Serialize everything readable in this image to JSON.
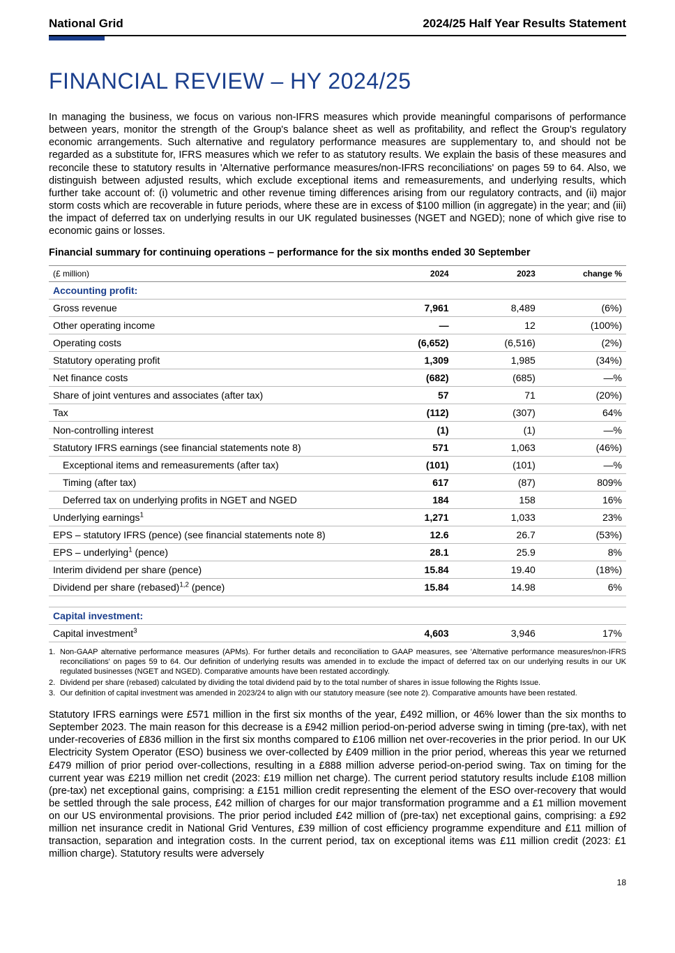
{
  "header": {
    "company": "National Grid",
    "doc_title": "2024/25 Half Year Results Statement"
  },
  "title": "FINANCIAL REVIEW – HY 2024/25",
  "intro_paragraph": "In managing the business, we focus on various non-IFRS measures which provide meaningful comparisons of performance between years, monitor the strength of the Group's balance sheet as well as profitability, and reflect the Group's regulatory economic arrangements. Such alternative and regulatory performance measures are supplementary to, and should not be regarded as a substitute for, IFRS measures which we refer to as statutory results. We explain the basis of these measures and reconcile these to statutory results in 'Alternative performance measures/non-IFRS reconciliations' on pages 59 to 64. Also, we distinguish between adjusted results, which exclude exceptional items and remeasurements, and underlying results, which further take account of: (i) volumetric and other revenue timing differences arising from our regulatory contracts, and (ii) major storm costs which are recoverable in future periods, where these are in excess of $100 million (in aggregate) in the year; and (iii) the impact of deferred tax on underlying results in our UK regulated businesses (NGET and NGED); none of which give rise to economic gains or losses.",
  "summary_heading": "Financial summary for continuing operations – performance for the six months ended 30 September",
  "table": {
    "unit_header": "(£ million)",
    "col_year_1": "2024",
    "col_year_2": "2023",
    "col_change": "change %",
    "section1": "Accounting profit:",
    "section2": "Capital investment:",
    "rows": [
      {
        "label": "Gross revenue",
        "y1": "7,961",
        "y2": "8,489",
        "chg": "(6%)",
        "indent": 0
      },
      {
        "label": "Other operating income",
        "y1": "—",
        "y2": "12",
        "chg": "(100%)",
        "indent": 0
      },
      {
        "label": "Operating costs",
        "y1": "(6,652)",
        "y2": "(6,516)",
        "chg": "(2%)",
        "indent": 0
      },
      {
        "label": "Statutory operating profit",
        "y1": "1,309",
        "y2": "1,985",
        "chg": "(34%)",
        "indent": 0
      },
      {
        "label": "Net finance costs",
        "y1": "(682)",
        "y2": "(685)",
        "chg": "—%",
        "indent": 0
      },
      {
        "label": "Share of joint ventures and associates (after tax)",
        "y1": "57",
        "y2": "71",
        "chg": "(20%)",
        "indent": 0
      },
      {
        "label": "Tax",
        "y1": "(112)",
        "y2": "(307)",
        "chg": "64%",
        "indent": 0
      },
      {
        "label": "Non-controlling interest",
        "y1": "(1)",
        "y2": "(1)",
        "chg": "—%",
        "indent": 0
      },
      {
        "label": "Statutory IFRS earnings (see financial statements note 8)",
        "y1": "571",
        "y2": "1,063",
        "chg": "(46%)",
        "indent": 0
      },
      {
        "label": "Exceptional items and remeasurements (after tax)",
        "y1": "(101)",
        "y2": "(101)",
        "chg": "—%",
        "indent": 1
      },
      {
        "label": "Timing (after tax)",
        "y1": "617",
        "y2": "(87)",
        "chg": "809%",
        "indent": 1
      },
      {
        "label": "Deferred tax on underlying profits in NGET and NGED",
        "y1": "184",
        "y2": "158",
        "chg": "16%",
        "indent": 1
      },
      {
        "label_html": "Underlying earnings<sup>1</sup>",
        "y1": "1,271",
        "y2": "1,033",
        "chg": "23%",
        "indent": 0
      },
      {
        "label": "EPS – statutory IFRS (pence) (see financial statements note 8)",
        "y1": "12.6",
        "y2": "26.7",
        "chg": "(53%)",
        "indent": 0
      },
      {
        "label_html": "EPS – underlying<sup>1</sup> (pence)",
        "y1": "28.1",
        "y2": "25.9",
        "chg": "8%",
        "indent": 0
      },
      {
        "label": "Interim dividend per share (pence)",
        "y1": "15.84",
        "y2": "19.40",
        "chg": "(18%)",
        "indent": 0
      },
      {
        "label_html": "Dividend per share (rebased)<sup>1,2</sup> (pence)",
        "y1": "15.84",
        "y2": "14.98",
        "chg": "6%",
        "indent": 0
      }
    ],
    "cap_row": {
      "label_html": "Capital investment<sup>3</sup>",
      "y1": "4,603",
      "y2": "3,946",
      "chg": "17%",
      "indent": 0
    }
  },
  "footnotes": [
    {
      "n": "1.",
      "text": "Non-GAAP alternative performance measures (APMs). For further details and reconciliation to GAAP measures, see 'Alternative performance measures/non-IFRS reconciliations' on pages 59 to 64. Our definition of underlying results was amended in to exclude the impact of deferred tax on our underlying results in our UK regulated businesses (NGET and NGED). Comparative amounts have been restated accordingly."
    },
    {
      "n": "2.",
      "text": "Dividend per share (rebased) calculated by dividing the total dividend paid by to the total number of shares in issue following the Rights Issue."
    },
    {
      "n": "3.",
      "text": "Our definition of capital investment was amended in 2023/24 to align with our statutory measure (see note 2). Comparative amounts have been restated."
    }
  ],
  "narrative": "Statutory IFRS earnings were £571 million in the first six months of the year, £492 million, or 46% lower than the six months to September 2023. The main reason for this decrease is a £942 million period-on-period adverse swing in timing (pre-tax), with net under-recoveries of £836 million in the first six months compared to £106 million net over-recoveries in the prior period. In our UK Electricity System Operator (ESO) business we over-collected by £409 million in the prior period, whereas this year we returned £479 million of prior period over-collections, resulting in a £888 million adverse period-on-period swing. Tax on timing for the current year was £219 million net credit (2023: £19 million net charge). The current period statutory results include £108 million (pre-tax) net exceptional gains, comprising: a £151 million credit representing the element of the ESO over-recovery that would be settled through the sale process, £42 million of charges for our major transformation programme and a £1 million movement on our US environmental provisions. The prior period included £42 million of (pre-tax) net exceptional gains, comprising: a £92 million net insurance credit in National Grid Ventures, £39 million of cost efficiency programme expenditure and £11 million of transaction, separation and integration costs. In the current period, tax on exceptional items was £11 million credit (2023: £1 million charge). Statutory results were adversely",
  "page_number": "18",
  "colors": {
    "brand_blue": "#1a3e8c",
    "text": "#000000",
    "rule_grey": "#b8b8b8"
  }
}
